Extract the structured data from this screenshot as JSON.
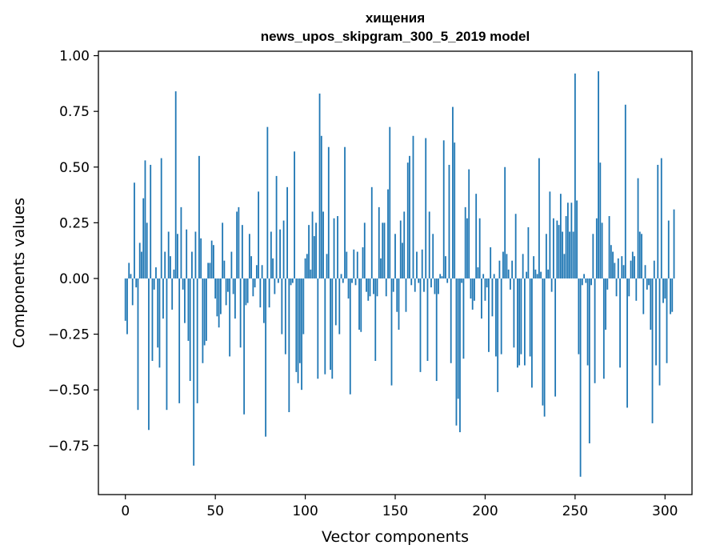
{
  "chart_data": {
    "type": "bar",
    "title": "хищения",
    "subtitle": "news_upos_skipgram_300_5_2019 model",
    "xlabel": "Vector components",
    "ylabel": "Components values",
    "xlim": [
      -15,
      315
    ],
    "ylim": [
      -0.97,
      1.02
    ],
    "xticks": [
      0,
      50,
      100,
      150,
      200,
      250,
      300
    ],
    "yticks": [
      -0.75,
      -0.5,
      -0.25,
      0.0,
      0.25,
      0.5,
      0.75,
      1.0
    ],
    "xtick_labels": [
      "0",
      "50",
      "100",
      "150",
      "200",
      "250",
      "300"
    ],
    "ytick_labels": [
      "−0.75",
      "−0.50",
      "−0.25",
      "0.00",
      "0.25",
      "0.50",
      "0.75",
      "1.00"
    ],
    "bar_color": "#1f77b4",
    "values": [
      -0.19,
      -0.25,
      0.07,
      0.02,
      -0.12,
      0.43,
      -0.04,
      -0.59,
      0.16,
      0.12,
      0.36,
      0.53,
      0.25,
      -0.68,
      0.51,
      -0.37,
      -0.05,
      0.05,
      -0.31,
      -0.4,
      0.54,
      -0.18,
      0.12,
      -0.59,
      0.21,
      0.1,
      -0.14,
      0.04,
      0.84,
      0.2,
      -0.56,
      0.32,
      -0.05,
      -0.2,
      0.22,
      -0.28,
      -0.46,
      0.12,
      -0.84,
      0.21,
      -0.56,
      0.55,
      0.18,
      -0.38,
      -0.3,
      -0.28,
      0.07,
      0.07,
      0.17,
      0.15,
      -0.09,
      -0.17,
      -0.22,
      -0.16,
      0.25,
      0.08,
      -0.12,
      -0.06,
      -0.35,
      0.12,
      -0.07,
      -0.18,
      0.3,
      0.32,
      -0.31,
      0.24,
      -0.61,
      -0.12,
      -0.11,
      0.2,
      0.1,
      -0.08,
      -0.04,
      0.06,
      0.39,
      -0.13,
      0.06,
      -0.2,
      -0.71,
      0.68,
      -0.13,
      0.21,
      0.09,
      -0.07,
      0.46,
      -0.02,
      0.22,
      -0.25,
      0.26,
      -0.34,
      0.41,
      -0.6,
      -0.03,
      -0.02,
      0.57,
      -0.42,
      -0.47,
      -0.38,
      -0.5,
      -0.25,
      0.09,
      0.11,
      0.24,
      0.04,
      0.3,
      0.19,
      0.25,
      -0.45,
      0.83,
      0.64,
      0.3,
      -0.43,
      0.11,
      0.59,
      -0.41,
      -0.45,
      0.27,
      -0.21,
      0.28,
      -0.25,
      0.02,
      -0.02,
      0.59,
      0.12,
      -0.09,
      -0.52,
      -0.02,
      0.13,
      -0.03,
      0.12,
      -0.23,
      -0.24,
      0.14,
      0.25,
      -0.06,
      -0.1,
      -0.08,
      0.41,
      -0.07,
      -0.37,
      -0.08,
      0.32,
      0.09,
      0.25,
      0.25,
      -0.08,
      0.4,
      0.68,
      -0.48,
      -0.06,
      0.2,
      -0.15,
      -0.23,
      0.26,
      0.16,
      0.3,
      -0.15,
      0.52,
      0.55,
      -0.03,
      0.64,
      -0.06,
      0.12,
      -0.02,
      -0.42,
      0.13,
      -0.06,
      0.63,
      -0.37,
      0.3,
      -0.04,
      0.2,
      -0.07,
      -0.46,
      -0.07,
      0.02,
      0.01,
      0.62,
      0.1,
      -0.02,
      0.51,
      -0.38,
      0.77,
      0.61,
      -0.66,
      -0.54,
      -0.69,
      -0.02,
      -0.36,
      0.32,
      0.27,
      0.49,
      -0.09,
      -0.14,
      -0.1,
      0.38,
      0.05,
      0.27,
      -0.18,
      0.02,
      -0.1,
      -0.04,
      -0.33,
      0.14,
      -0.17,
      0.02,
      -0.35,
      -0.51,
      0.08,
      -0.34,
      0.12,
      0.5,
      0.11,
      0.04,
      -0.05,
      0.08,
      -0.31,
      0.29,
      -0.4,
      -0.39,
      -0.34,
      0.11,
      -0.39,
      0.03,
      0.23,
      -0.35,
      -0.49,
      0.1,
      0.04,
      0.02,
      0.54,
      0.03,
      -0.57,
      -0.62,
      0.2,
      0.04,
      0.39,
      -0.06,
      0.27,
      -0.53,
      0.26,
      0.24,
      0.38,
      0.21,
      0.11,
      0.28,
      0.34,
      0.21,
      0.34,
      0.21,
      0.92,
      0.35,
      -0.34,
      -0.89,
      -0.03,
      0.02,
      -0.02,
      -0.39,
      -0.74,
      -0.03,
      0.2,
      -0.47,
      0.27,
      0.93,
      0.52,
      0.25,
      -0.45,
      -0.23,
      -0.05,
      0.28,
      0.15,
      0.12,
      0.07,
      -0.08,
      0.09,
      -0.4,
      0.1,
      0.06,
      0.78,
      -0.58,
      -0.08,
      0.08,
      0.12,
      0.1,
      -0.1,
      0.45,
      0.21,
      0.2,
      -0.16,
      0.06,
      -0.05,
      -0.03,
      -0.23,
      -0.65,
      0.08,
      -0.39,
      0.51,
      -0.48,
      0.54,
      -0.11,
      -0.09,
      -0.38,
      0.26,
      -0.16,
      -0.15,
      0.31
    ]
  }
}
